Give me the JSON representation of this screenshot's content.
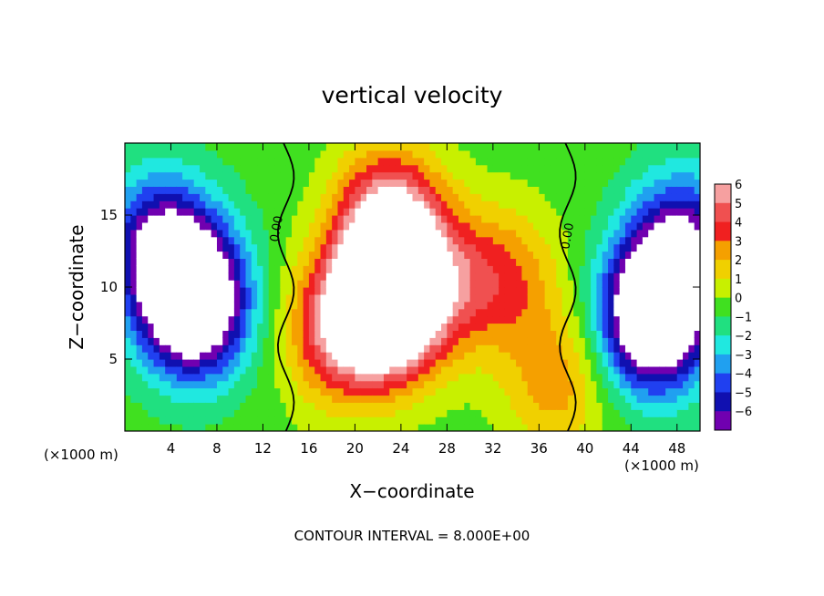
{
  "chart_data": {
    "type": "heatmap",
    "title": "vertical velocity",
    "xlabel": "X−coordinate",
    "ylabel": "Z−coordinate",
    "x_unit_label": "(×1000 m)",
    "y_unit_label": "(×1000 m)",
    "xlim": [
      0,
      50
    ],
    "ylim": [
      0,
      20
    ],
    "x_ticks": [
      4,
      8,
      12,
      16,
      20,
      24,
      28,
      32,
      36,
      40,
      44,
      48
    ],
    "y_ticks": [
      5,
      10,
      15
    ],
    "colorbar": {
      "ticks": [
        6,
        5,
        4,
        3,
        2,
        1,
        0,
        -1,
        -2,
        -3,
        -4,
        -5,
        -6
      ],
      "tick_labels": [
        "6",
        "5",
        "4",
        "3",
        "2",
        "1",
        "0",
        "−1",
        "−2",
        "−3",
        "−4",
        "−5",
        "−6"
      ],
      "colors": [
        "#f6a0a0",
        "#f05050",
        "#f02020",
        "#f5a000",
        "#f0d000",
        "#c8f000",
        "#40e020",
        "#20e080",
        "#20e8e0",
        "#20a0f0",
        "#2040f0",
        "#1010b0",
        "#7000b0"
      ]
    },
    "contour_labels": [
      "0.00",
      "0.00"
    ],
    "footer": "CONTOUR INTERVAL = 8.000E+00",
    "grid": false,
    "features": [
      {
        "x": 23,
        "z": 9,
        "w": 12
      },
      {
        "x": 23,
        "z": 14.5,
        "w": 7
      },
      {
        "x": 18.5,
        "z": 7,
        "w": 5
      },
      {
        "x": 28.5,
        "z": 10.5,
        "w": 3
      },
      {
        "x": 33.5,
        "z": 10.5,
        "w": 3
      },
      {
        "x": 37.5,
        "z": 3.5,
        "w": 3
      },
      {
        "x": 6,
        "z": 9,
        "w": -11
      },
      {
        "x": 3,
        "z": 13,
        "w": -6
      },
      {
        "x": 46,
        "z": 8,
        "w": -11
      },
      {
        "x": 48.5,
        "z": 13,
        "w": -6
      }
    ]
  }
}
